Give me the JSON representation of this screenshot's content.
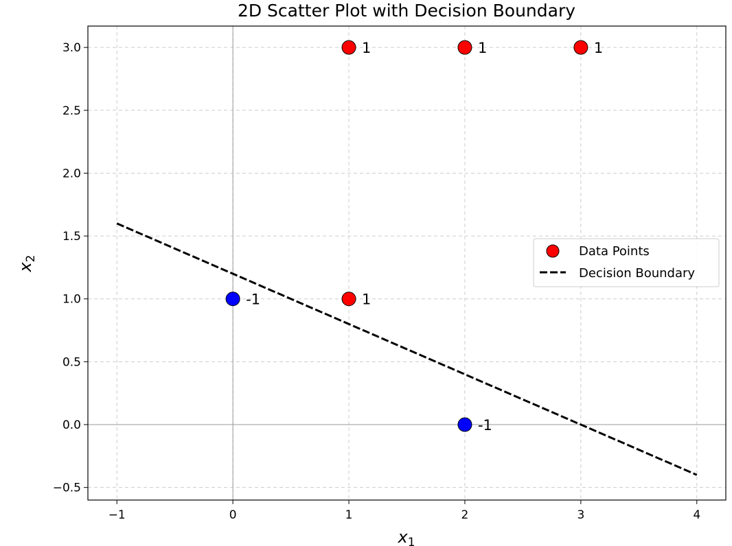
{
  "chart_data": {
    "type": "scatter",
    "title": "2D Scatter Plot with Decision Boundary",
    "xlabel": "x",
    "xlabel_sub": "1",
    "ylabel": "x",
    "ylabel_sub": "2",
    "xlim": [
      -1.25,
      4.25
    ],
    "ylim": [
      -0.6,
      3.17
    ],
    "x_ticks": [
      -1,
      0,
      1,
      2,
      3,
      4
    ],
    "x_tick_labels": [
      "−1",
      "0",
      "1",
      "2",
      "3",
      "4"
    ],
    "y_ticks": [
      -0.5,
      0.0,
      0.5,
      1.0,
      1.5,
      2.0,
      2.5,
      3.0
    ],
    "y_tick_labels": [
      "−0.5",
      "0.0",
      "0.5",
      "1.0",
      "1.5",
      "2.0",
      "2.5",
      "3.0"
    ],
    "grid": true,
    "legend_position": "center-right",
    "series": [
      {
        "name": "Data Points",
        "kind": "scatter",
        "points": [
          {
            "x": 0,
            "y": 1,
            "label": "-1",
            "color": "#0000ff"
          },
          {
            "x": 2,
            "y": 0,
            "label": "-1",
            "color": "#0000ff"
          },
          {
            "x": 1,
            "y": 1,
            "label": "1",
            "color": "#ff0000"
          },
          {
            "x": 1,
            "y": 3,
            "label": "1",
            "color": "#ff0000"
          },
          {
            "x": 2,
            "y": 3,
            "label": "1",
            "color": "#ff0000"
          },
          {
            "x": 3,
            "y": 3,
            "label": "1",
            "color": "#ff0000"
          }
        ]
      },
      {
        "name": "Decision Boundary",
        "kind": "line",
        "style": "dashed",
        "color": "#000000",
        "x": [
          -1,
          4
        ],
        "y": [
          1.6,
          -0.4
        ]
      }
    ],
    "legend": [
      {
        "label": "Data Points",
        "marker": "circle",
        "color": "#ff0000"
      },
      {
        "label": "Decision Boundary",
        "marker": "dashed-line",
        "color": "#000000"
      }
    ]
  }
}
